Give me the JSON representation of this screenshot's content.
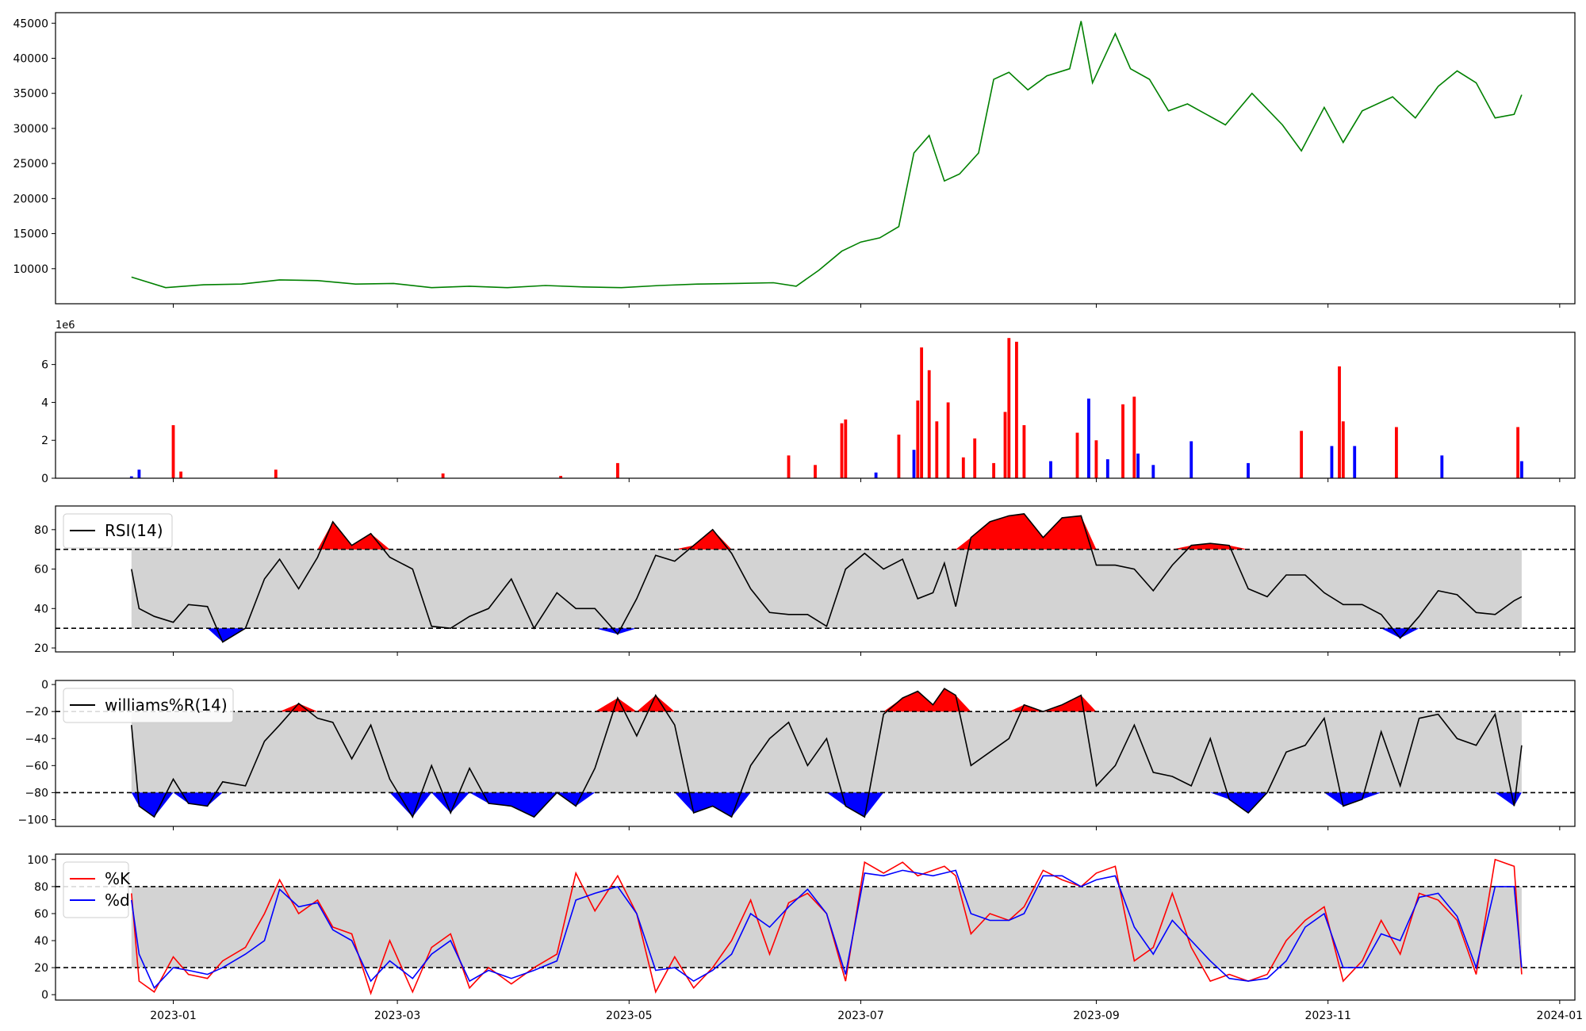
{
  "chart_data": [
    {
      "type": "line",
      "series": [
        {
          "color": "#008000"
        }
      ],
      "x_range": [
        "2022-12-01",
        "2024-01-05"
      ],
      "ylim": [
        5000,
        46500
      ],
      "y_ticks": [
        10000,
        15000,
        20000,
        25000,
        30000,
        35000,
        40000,
        45000
      ],
      "y_tick_labels": [
        "10000",
        "15000",
        "20000",
        "25000",
        "30000",
        "35000",
        "40000",
        "45000"
      ],
      "grid": false,
      "x": [
        "2022-12-21",
        "2022-12-30",
        "2023-01-09",
        "2023-01-19",
        "2023-01-29",
        "2023-02-08",
        "2023-02-18",
        "2023-02-28",
        "2023-03-10",
        "2023-03-20",
        "2023-03-30",
        "2023-04-09",
        "2023-04-19",
        "2023-04-29",
        "2023-05-09",
        "2023-05-19",
        "2023-05-29",
        "2023-06-08",
        "2023-06-14",
        "2023-06-20",
        "2023-06-26",
        "2023-07-01",
        "2023-07-06",
        "2023-07-11",
        "2023-07-15",
        "2023-07-19",
        "2023-07-23",
        "2023-07-27",
        "2023-08-01",
        "2023-08-05",
        "2023-08-09",
        "2023-08-14",
        "2023-08-19",
        "2023-08-25",
        "2023-08-28",
        "2023-08-31",
        "2023-09-06",
        "2023-09-10",
        "2023-09-15",
        "2023-09-20",
        "2023-09-25",
        "2023-10-05",
        "2023-10-12",
        "2023-10-20",
        "2023-10-25",
        "2023-10-31",
        "2023-11-05",
        "2023-11-10",
        "2023-11-18",
        "2023-11-24",
        "2023-11-30",
        "2023-12-05",
        "2023-12-10",
        "2023-12-15",
        "2023-12-20",
        "2023-12-22"
      ],
      "y": [
        8800,
        7300,
        7700,
        7800,
        8400,
        8300,
        7800,
        7900,
        7300,
        7500,
        7300,
        7600,
        7400,
        7300,
        7600,
        7800,
        7900,
        8000,
        7500,
        9800,
        12500,
        13800,
        14400,
        16000,
        26500,
        29000,
        22500,
        23500,
        26500,
        37000,
        38000,
        35500,
        37500,
        38500,
        45300,
        36500,
        43500,
        38500,
        37000,
        32500,
        33500,
        30500,
        35000,
        30500,
        26800,
        33000,
        28000,
        32500,
        34500,
        31500,
        36000,
        38200,
        36500,
        31500,
        32000,
        34800
      ]
    },
    {
      "type": "bar",
      "y_scale_label": "1e6",
      "ylim": [
        0,
        7700000
      ],
      "y_ticks": [
        0,
        2000000,
        4000000,
        6000000
      ],
      "y_tick_labels": [
        "0",
        "2",
        "4",
        "6"
      ],
      "colors": {
        "up": "#ff0000",
        "down": "#0000ff"
      },
      "x": [
        "2022-12-21",
        "2022-12-23",
        "2023-01-01",
        "2023-01-03",
        "2023-01-28",
        "2023-03-13",
        "2023-04-13",
        "2023-04-28",
        "2023-06-12",
        "2023-06-19",
        "2023-06-26",
        "2023-06-27",
        "2023-07-05",
        "2023-07-11",
        "2023-07-15",
        "2023-07-16",
        "2023-07-17",
        "2023-07-19",
        "2023-07-21",
        "2023-07-24",
        "2023-07-28",
        "2023-07-31",
        "2023-08-05",
        "2023-08-08",
        "2023-08-09",
        "2023-08-11",
        "2023-08-13",
        "2023-08-20",
        "2023-08-27",
        "2023-08-30",
        "2023-09-01",
        "2023-09-04",
        "2023-09-08",
        "2023-09-11",
        "2023-09-12",
        "2023-09-16",
        "2023-09-26",
        "2023-10-11",
        "2023-10-25",
        "2023-11-02",
        "2023-11-04",
        "2023-11-05",
        "2023-11-08",
        "2023-11-19",
        "2023-12-01",
        "2023-12-21",
        "2023-12-22"
      ],
      "values": [
        100000,
        450000,
        2800000,
        350000,
        450000,
        250000,
        120000,
        800000,
        1200000,
        700000,
        2900000,
        3100000,
        300000,
        2300000,
        1500000,
        4100000,
        6900000,
        5700000,
        3000000,
        4000000,
        1100000,
        2100000,
        800000,
        3500000,
        7400000,
        7200000,
        2800000,
        900000,
        2400000,
        4200000,
        2000000,
        1000000,
        3900000,
        4300000,
        1300000,
        700000,
        1950000,
        800000,
        2500000,
        1700000,
        5900000,
        3000000,
        1700000,
        2700000,
        1200000,
        2700000,
        900000
      ],
      "directions": [
        "down",
        "down",
        "up",
        "up",
        "up",
        "up",
        "up",
        "up",
        "up",
        "up",
        "up",
        "up",
        "down",
        "up",
        "down",
        "up",
        "up",
        "up",
        "up",
        "up",
        "up",
        "up",
        "up",
        "up",
        "up",
        "up",
        "up",
        "down",
        "up",
        "down",
        "up",
        "down",
        "up",
        "up",
        "down",
        "down",
        "down",
        "down",
        "up",
        "down",
        "up",
        "up",
        "down",
        "up",
        "down",
        "up",
        "down"
      ]
    },
    {
      "type": "line",
      "legend": [
        {
          "label": "RSI(14)",
          "color": "#000000"
        }
      ],
      "legend_position": "upper left",
      "ylim": [
        18,
        92
      ],
      "y_ticks": [
        20,
        40,
        60,
        80
      ],
      "y_tick_labels": [
        "20",
        "40",
        "60",
        "80"
      ],
      "thresholds": [
        30,
        70
      ],
      "band_color": "#d3d3d3",
      "overbought_color": "#ff0000",
      "oversold_color": "#0000ff",
      "x": [
        "2022-12-21",
        "2022-12-23",
        "2022-12-27",
        "2023-01-01",
        "2023-01-05",
        "2023-01-10",
        "2023-01-14",
        "2023-01-20",
        "2023-01-25",
        "2023-01-29",
        "2023-02-03",
        "2023-02-08",
        "2023-02-12",
        "2023-02-17",
        "2023-02-22",
        "2023-02-27",
        "2023-03-05",
        "2023-03-10",
        "2023-03-15",
        "2023-03-20",
        "2023-03-25",
        "2023-03-31",
        "2023-04-06",
        "2023-04-12",
        "2023-04-17",
        "2023-04-22",
        "2023-04-28",
        "2023-05-03",
        "2023-05-08",
        "2023-05-13",
        "2023-05-18",
        "2023-05-23",
        "2023-05-28",
        "2023-06-02",
        "2023-06-07",
        "2023-06-12",
        "2023-06-17",
        "2023-06-22",
        "2023-06-27",
        "2023-07-02",
        "2023-07-07",
        "2023-07-12",
        "2023-07-16",
        "2023-07-20",
        "2023-07-23",
        "2023-07-26",
        "2023-07-30",
        "2023-08-04",
        "2023-08-09",
        "2023-08-13",
        "2023-08-18",
        "2023-08-23",
        "2023-08-28",
        "2023-09-01",
        "2023-09-06",
        "2023-09-11",
        "2023-09-16",
        "2023-09-21",
        "2023-09-26",
        "2023-10-01",
        "2023-10-06",
        "2023-10-11",
        "2023-10-16",
        "2023-10-21",
        "2023-10-26",
        "2023-10-31",
        "2023-11-05",
        "2023-11-10",
        "2023-11-15",
        "2023-11-20",
        "2023-11-25",
        "2023-11-30",
        "2023-12-05",
        "2023-12-10",
        "2023-12-15",
        "2023-12-20",
        "2023-12-22"
      ],
      "values": [
        60,
        40,
        36,
        33,
        42,
        41,
        23,
        30,
        55,
        65,
        50,
        66,
        84,
        72,
        78,
        66,
        60,
        31,
        30,
        36,
        40,
        55,
        30,
        48,
        40,
        40,
        27,
        45,
        67,
        64,
        72,
        80,
        68,
        50,
        38,
        37,
        37,
        31,
        60,
        68,
        60,
        65,
        45,
        48,
        63,
        41,
        76,
        84,
        87,
        88,
        76,
        86,
        87,
        62,
        62,
        60,
        49,
        62,
        72,
        73,
        72,
        50,
        46,
        57,
        57,
        48,
        42,
        42,
        37,
        25,
        36,
        49,
        47,
        38,
        37,
        44,
        46
      ]
    },
    {
      "type": "line",
      "legend": [
        {
          "label": "williams%R(14)",
          "color": "#000000"
        }
      ],
      "legend_position": "upper left",
      "ylim": [
        -105,
        3
      ],
      "y_ticks": [
        -100,
        -80,
        -60,
        -40,
        -20,
        0
      ],
      "y_tick_labels": [
        "−100",
        "−80",
        "−60",
        "−40",
        "−20",
        "0"
      ],
      "thresholds": [
        -80,
        -20
      ],
      "band_color": "#d3d3d3",
      "overbought_color": "#ff0000",
      "oversold_color": "#0000ff",
      "x": [
        "2022-12-21",
        "2022-12-23",
        "2022-12-27",
        "2023-01-01",
        "2023-01-05",
        "2023-01-10",
        "2023-01-14",
        "2023-01-20",
        "2023-01-25",
        "2023-01-29",
        "2023-02-03",
        "2023-02-08",
        "2023-02-12",
        "2023-02-17",
        "2023-02-22",
        "2023-02-27",
        "2023-03-05",
        "2023-03-10",
        "2023-03-15",
        "2023-03-20",
        "2023-03-25",
        "2023-03-31",
        "2023-04-06",
        "2023-04-12",
        "2023-04-17",
        "2023-04-22",
        "2023-04-28",
        "2023-05-03",
        "2023-05-08",
        "2023-05-13",
        "2023-05-18",
        "2023-05-23",
        "2023-05-28",
        "2023-06-02",
        "2023-06-07",
        "2023-06-12",
        "2023-06-17",
        "2023-06-22",
        "2023-06-27",
        "2023-07-02",
        "2023-07-07",
        "2023-07-12",
        "2023-07-16",
        "2023-07-20",
        "2023-07-23",
        "2023-07-26",
        "2023-07-30",
        "2023-08-04",
        "2023-08-09",
        "2023-08-13",
        "2023-08-18",
        "2023-08-23",
        "2023-08-28",
        "2023-09-01",
        "2023-09-06",
        "2023-09-11",
        "2023-09-16",
        "2023-09-21",
        "2023-09-26",
        "2023-10-01",
        "2023-10-06",
        "2023-10-11",
        "2023-10-16",
        "2023-10-21",
        "2023-10-26",
        "2023-10-31",
        "2023-11-05",
        "2023-11-10",
        "2023-11-15",
        "2023-11-20",
        "2023-11-25",
        "2023-11-30",
        "2023-12-05",
        "2023-12-10",
        "2023-12-15",
        "2023-12-20",
        "2023-12-22"
      ],
      "values": [
        -30,
        -90,
        -98,
        -70,
        -88,
        -90,
        -72,
        -75,
        -42,
        -30,
        -14,
        -25,
        -28,
        -55,
        -30,
        -70,
        -98,
        -60,
        -95,
        -62,
        -88,
        -90,
        -98,
        -80,
        -90,
        -62,
        -10,
        -38,
        -8,
        -30,
        -95,
        -90,
        -98,
        -60,
        -40,
        -28,
        -60,
        -40,
        -90,
        -98,
        -22,
        -10,
        -5,
        -15,
        -3,
        -8,
        -60,
        -50,
        -40,
        -15,
        -20,
        -15,
        -8,
        -75,
        -60,
        -30,
        -65,
        -68,
        -75,
        -40,
        -85,
        -95,
        -80,
        -50,
        -45,
        -25,
        -90,
        -85,
        -35,
        -75,
        -25,
        -22,
        -40,
        -45,
        -22,
        -90,
        -45
      ]
    },
    {
      "type": "line",
      "legend": [
        {
          "label": "%K",
          "color": "#ff0000"
        },
        {
          "label": "%d",
          "color": "#0000ff"
        }
      ],
      "legend_position": "upper left",
      "ylim": [
        -4,
        104
      ],
      "y_ticks": [
        0,
        20,
        40,
        60,
        80,
        100
      ],
      "y_tick_labels": [
        "0",
        "20",
        "40",
        "60",
        "80",
        "100"
      ],
      "thresholds": [
        20,
        80
      ],
      "band_color": "#d3d3d3",
      "x": [
        "2022-12-21",
        "2022-12-23",
        "2022-12-27",
        "2023-01-01",
        "2023-01-05",
        "2023-01-10",
        "2023-01-14",
        "2023-01-20",
        "2023-01-25",
        "2023-01-29",
        "2023-02-03",
        "2023-02-08",
        "2023-02-12",
        "2023-02-17",
        "2023-02-22",
        "2023-02-27",
        "2023-03-05",
        "2023-03-10",
        "2023-03-15",
        "2023-03-20",
        "2023-03-25",
        "2023-03-31",
        "2023-04-06",
        "2023-04-12",
        "2023-04-17",
        "2023-04-22",
        "2023-04-28",
        "2023-05-03",
        "2023-05-08",
        "2023-05-13",
        "2023-05-18",
        "2023-05-23",
        "2023-05-28",
        "2023-06-02",
        "2023-06-07",
        "2023-06-12",
        "2023-06-17",
        "2023-06-22",
        "2023-06-27",
        "2023-07-02",
        "2023-07-07",
        "2023-07-12",
        "2023-07-16",
        "2023-07-20",
        "2023-07-23",
        "2023-07-26",
        "2023-07-30",
        "2023-08-04",
        "2023-08-09",
        "2023-08-13",
        "2023-08-18",
        "2023-08-23",
        "2023-08-28",
        "2023-09-01",
        "2023-09-06",
        "2023-09-11",
        "2023-09-16",
        "2023-09-21",
        "2023-09-26",
        "2023-10-01",
        "2023-10-06",
        "2023-10-11",
        "2023-10-16",
        "2023-10-21",
        "2023-10-26",
        "2023-10-31",
        "2023-11-05",
        "2023-11-10",
        "2023-11-15",
        "2023-11-20",
        "2023-11-25",
        "2023-11-30",
        "2023-12-05",
        "2023-12-10",
        "2023-12-15",
        "2023-12-20",
        "2023-12-22"
      ],
      "series": [
        {
          "color": "#ff0000",
          "values": [
            75,
            10,
            2,
            28,
            15,
            12,
            25,
            35,
            60,
            85,
            60,
            70,
            50,
            45,
            1,
            40,
            2,
            35,
            45,
            5,
            20,
            8,
            20,
            30,
            90,
            62,
            88,
            60,
            2,
            28,
            5,
            20,
            40,
            70,
            30,
            68,
            75,
            60,
            10,
            98,
            90,
            98,
            88,
            92,
            95,
            88,
            45,
            60,
            55,
            65,
            92,
            85,
            80,
            90,
            95,
            25,
            35,
            75,
            35,
            10,
            15,
            10,
            15,
            40,
            55,
            65,
            10,
            25,
            55,
            30,
            75,
            70,
            55,
            15,
            100,
            95,
            15
          ]
        },
        {
          "color": "#0000ff",
          "values": [
            70,
            30,
            5,
            20,
            18,
            15,
            20,
            30,
            40,
            78,
            65,
            68,
            48,
            40,
            10,
            25,
            12,
            30,
            40,
            10,
            18,
            12,
            18,
            25,
            70,
            75,
            80,
            60,
            18,
            20,
            10,
            18,
            30,
            60,
            50,
            65,
            78,
            60,
            15,
            90,
            88,
            92,
            90,
            88,
            90,
            92,
            60,
            55,
            55,
            60,
            88,
            88,
            80,
            85,
            88,
            50,
            30,
            55,
            40,
            25,
            12,
            10,
            12,
            25,
            50,
            60,
            20,
            20,
            45,
            40,
            72,
            75,
            58,
            20,
            80,
            80,
            20
          ]
        }
      ]
    },
    {
      "type": "axis",
      "x_ticks": [
        "2023-01-01",
        "2023-03-01",
        "2023-05-01",
        "2023-07-01",
        "2023-09-01",
        "2023-11-01",
        "2024-01-01"
      ],
      "x_tick_labels": [
        "2023-01",
        "2023-03",
        "2023-05",
        "2023-07",
        "2023-09",
        "2023-11",
        "2024-01"
      ]
    }
  ]
}
